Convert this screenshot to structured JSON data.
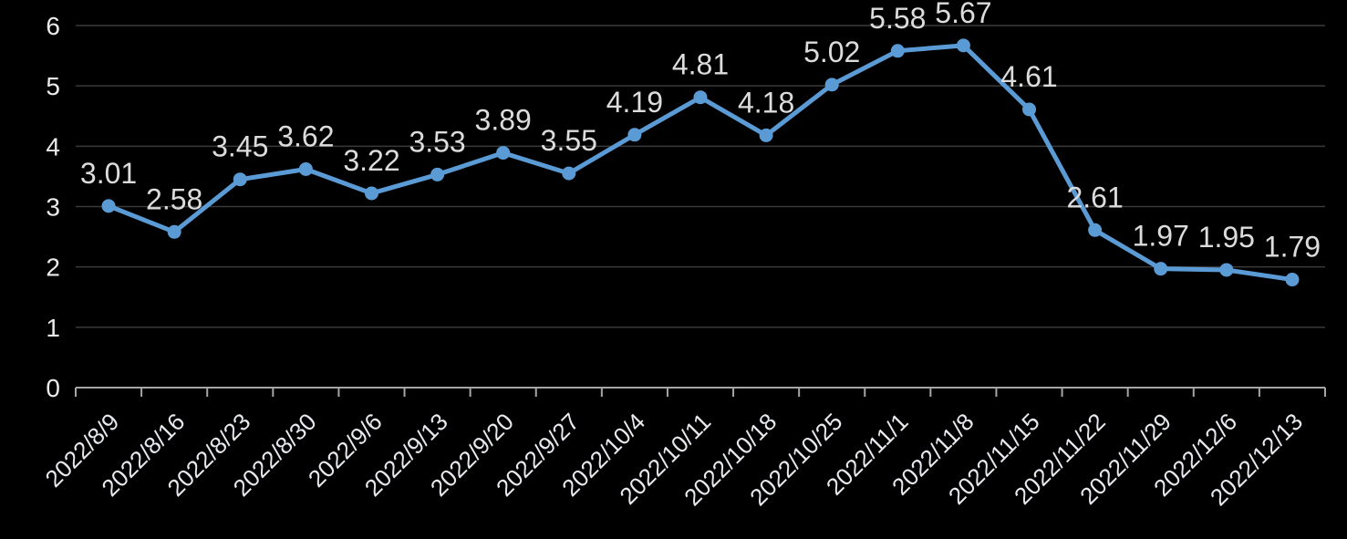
{
  "chart_data": {
    "type": "line",
    "title": "",
    "xlabel": "",
    "ylabel": "",
    "categories": [
      "2022/8/9",
      "2022/8/16",
      "2022/8/23",
      "2022/8/30",
      "2022/9/6",
      "2022/9/13",
      "2022/9/20",
      "2022/9/27",
      "2022/10/4",
      "2022/10/11",
      "2022/10/18",
      "2022/10/25",
      "2022/11/1",
      "2022/11/8",
      "2022/11/15",
      "2022/11/22",
      "2022/11/29",
      "2022/12/6",
      "2022/12/13"
    ],
    "values": [
      3.01,
      2.58,
      3.45,
      3.62,
      3.22,
      3.53,
      3.89,
      3.55,
      4.19,
      4.81,
      4.18,
      5.02,
      5.58,
      5.67,
      4.61,
      2.61,
      1.97,
      1.95,
      1.79
    ],
    "data_labels": [
      "3.01",
      "2.58",
      "3.45",
      "3.62",
      "3.22",
      "3.53",
      "3.89",
      "3.55",
      "4.19",
      "4.81",
      "4.18",
      "5.02",
      "5.58",
      "5.67",
      "4.61",
      "2.61",
      "1.97",
      "1.95",
      "1.79"
    ],
    "ylim": [
      0,
      6
    ],
    "y_ticks": [
      "0",
      "1",
      "2",
      "3",
      "4",
      "5",
      "6"
    ],
    "grid": true,
    "legend": "none",
    "style": {
      "background": "#000000",
      "line_color": "#5b9bd5",
      "marker_color": "#5b9bd5",
      "grid_color": "#3a3a3a",
      "axis_color": "#a6a6a6",
      "tick_label_color": "#eaeaea",
      "x_label_color": "#e7e9ee",
      "data_label_color": "#dcdcdc"
    }
  }
}
